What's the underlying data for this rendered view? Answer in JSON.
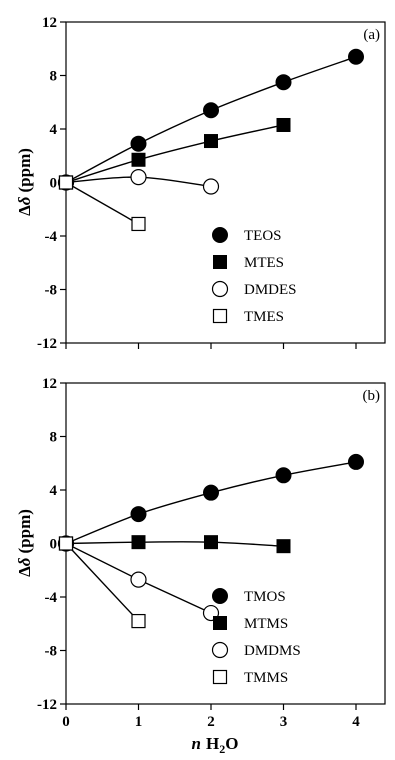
{
  "chart_data": [
    {
      "type": "scatter",
      "panel_label": "(a)",
      "title": "",
      "xlabel": "n H2O",
      "ylabel": "Δδ (ppm)",
      "xlim": [
        0,
        4.4
      ],
      "ylim": [
        -12,
        12
      ],
      "yticks": [
        "12",
        "8",
        "4",
        "0",
        "-4",
        "-8",
        "-12"
      ],
      "xticks": [
        "0",
        "1",
        "2",
        "3",
        "4"
      ],
      "show_x_tick_labels": false,
      "grid": false,
      "legend_placement": "bottom-right",
      "series": [
        {
          "name": "TEOS",
          "marker": "filled-circle",
          "fit": "curve",
          "x": [
            0,
            1,
            2,
            3,
            4
          ],
          "y": [
            0,
            2.9,
            5.4,
            7.5,
            9.4
          ]
        },
        {
          "name": "MTES",
          "marker": "filled-square",
          "fit": "curve",
          "x": [
            0,
            1,
            2,
            3
          ],
          "y": [
            0,
            1.7,
            3.1,
            4.3
          ]
        },
        {
          "name": "DMDES",
          "marker": "open-circle",
          "fit": "curve",
          "x": [
            0,
            1,
            2
          ],
          "y": [
            0,
            0.4,
            -0.3
          ]
        },
        {
          "name": "TMES",
          "marker": "open-square",
          "fit": "line",
          "x": [
            0,
            1
          ],
          "y": [
            0,
            -3.1
          ]
        }
      ]
    },
    {
      "type": "scatter",
      "panel_label": "(b)",
      "title": "",
      "xlabel": "n H2O",
      "ylabel": "Δδ (ppm)",
      "xlim": [
        0,
        4.4
      ],
      "ylim": [
        -12,
        12
      ],
      "yticks": [
        "12",
        "8",
        "4",
        "0",
        "-4",
        "-8",
        "-12"
      ],
      "xticks": [
        "0",
        "1",
        "2",
        "3",
        "4"
      ],
      "show_x_tick_labels": true,
      "grid": false,
      "legend_placement": "bottom-right",
      "series": [
        {
          "name": "TMOS",
          "marker": "filled-circle",
          "fit": "curve",
          "x": [
            0,
            1,
            2,
            3,
            4
          ],
          "y": [
            0,
            2.2,
            3.8,
            5.1,
            6.1
          ]
        },
        {
          "name": "MTMS",
          "marker": "filled-square",
          "fit": "curve",
          "x": [
            0,
            1,
            2,
            3
          ],
          "y": [
            0,
            0.1,
            0.1,
            -0.2
          ]
        },
        {
          "name": "DMDMS",
          "marker": "open-circle",
          "fit": "line",
          "x": [
            0,
            1,
            2
          ],
          "y": [
            0,
            -2.7,
            -5.2
          ]
        },
        {
          "name": "TMMS",
          "marker": "open-square",
          "fit": "line",
          "x": [
            0,
            1
          ],
          "y": [
            0,
            -5.8
          ]
        }
      ]
    }
  ],
  "axis_text": {
    "ylabel_delta": "Δ",
    "ylabel_delta_small": "δ",
    "ylabel_unit": "(ppm)",
    "xlabel_n": "n",
    "xlabel_h": "H",
    "xlabel_sub": "2",
    "xlabel_o": "O"
  }
}
